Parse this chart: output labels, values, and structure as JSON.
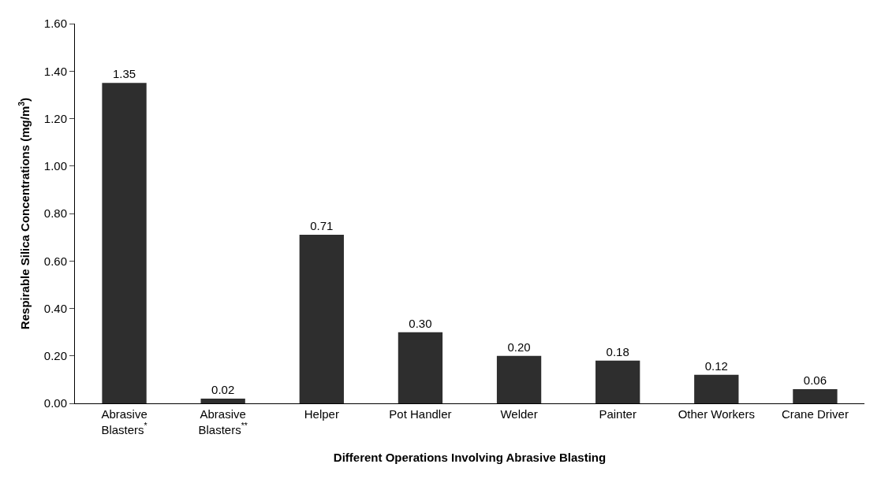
{
  "chart_data": {
    "type": "bar",
    "xlabel": "Different Operations Involving Abrasive Blasting",
    "ylabel": "Respirable Silica Concentrations (mg/m$^{3}$)",
    "categories": [
      "Abrasive\nBlasters$^{*}$",
      "Abrasive\nBlasters$^{**}$",
      "Helper",
      "Pot Handler",
      "Welder",
      "Painter",
      "Other Workers",
      "Crane Driver"
    ],
    "values": [
      1.35,
      0.02,
      0.71,
      0.3,
      0.2,
      0.18,
      0.12,
      0.06
    ],
    "value_labels": [
      "1.35",
      "0.02",
      "0.71",
      "0.30",
      "0.20",
      "0.18",
      "0.12",
      "0.06"
    ],
    "color": "#2e2e2e",
    "ylim": [
      0,
      1.6
    ],
    "yticks": [
      {
        "value": 0,
        "label": "0.00"
      },
      {
        "value": 0.2,
        "label": "0.20"
      },
      {
        "value": 0.4,
        "label": "0.40"
      },
      {
        "value": 0.6,
        "label": "0.60"
      },
      {
        "value": 0.8,
        "label": "0.80"
      },
      {
        "value": 1.0,
        "label": "1.00"
      },
      {
        "value": 1.2,
        "label": "1.20"
      },
      {
        "value": 1.4,
        "label": "1.40"
      },
      {
        "value": 1.6,
        "label": "1.60"
      }
    ],
    "grid": false
  }
}
